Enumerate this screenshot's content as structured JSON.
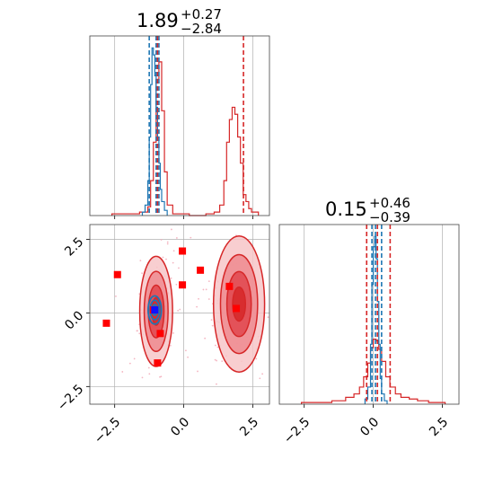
{
  "colors": {
    "red": "#d62728",
    "blue": "#1f77b4",
    "marker": "#ff0000",
    "grid": "#b0b0b0",
    "scatter": "#f4b6c2"
  },
  "chart_data": [
    {
      "type": "histogram",
      "panel": "top-left",
      "title": {
        "value": "1.89",
        "plus": "+0.27",
        "minus": "−2.84"
      },
      "xlim": [
        -3.4,
        3.1
      ],
      "grid": true,
      "series": [
        {
          "color": "#d62728",
          "bins": [
            -2.6,
            -2.0,
            -1.6,
            -1.4,
            -1.3,
            -1.2,
            -1.1,
            -1.0,
            -0.9,
            -0.8,
            -0.7,
            -0.6,
            -0.4,
            0.2,
            0.8,
            1.1,
            1.3,
            1.45,
            1.55,
            1.65,
            1.75,
            1.85,
            1.95,
            2.05,
            2.15,
            2.25,
            2.35,
            2.45,
            2.7
          ],
          "counts": [
            0.01,
            0.01,
            0.02,
            0.02,
            0.05,
            0.2,
            0.42,
            0.78,
            0.88,
            0.6,
            0.25,
            0.06,
            0.01,
            0.0,
            0.01,
            0.02,
            0.06,
            0.2,
            0.42,
            0.55,
            0.62,
            0.58,
            0.45,
            0.3,
            0.12,
            0.08,
            0.04,
            0.02,
            0.0
          ]
        },
        {
          "color": "#1f77b4",
          "bins": [
            -1.5,
            -1.4,
            -1.3,
            -1.25,
            -1.2,
            -1.15,
            -1.1,
            -1.05,
            -1.0,
            -0.95,
            -0.9,
            -0.85,
            -0.8,
            -0.7,
            -0.6
          ],
          "counts": [
            0.02,
            0.06,
            0.2,
            0.45,
            0.75,
            0.96,
            0.92,
            0.8,
            0.62,
            0.45,
            0.3,
            0.15,
            0.08,
            0.03,
            0.0
          ]
        }
      ],
      "quantiles": [
        {
          "color": "#1f77b4",
          "x": [
            -1.25,
            -1.0,
            -0.9
          ]
        },
        {
          "color": "#d62728",
          "x": [
            -0.95,
            2.16
          ]
        }
      ]
    },
    {
      "type": "histogram",
      "panel": "bottom-right",
      "title": {
        "value": "0.15",
        "plus": "+0.46",
        "minus": "−0.39"
      },
      "xlim": [
        -3.4,
        3.1
      ],
      "xticks": [
        "−2.5",
        "0.0",
        "2.5"
      ],
      "grid": true,
      "series": [
        {
          "color": "#d62728",
          "bins": [
            -2.6,
            -2.0,
            -1.5,
            -1.0,
            -0.7,
            -0.5,
            -0.35,
            -0.2,
            -0.1,
            0.0,
            0.1,
            0.2,
            0.3,
            0.45,
            0.6,
            0.8,
            1.0,
            1.3,
            1.6,
            2.0,
            2.6
          ],
          "counts": [
            0.01,
            0.01,
            0.02,
            0.04,
            0.06,
            0.1,
            0.16,
            0.24,
            0.33,
            0.38,
            0.37,
            0.32,
            0.25,
            0.16,
            0.1,
            0.06,
            0.04,
            0.03,
            0.02,
            0.01,
            0.0
          ]
        },
        {
          "color": "#1f77b4",
          "bins": [
            -0.3,
            -0.2,
            -0.1,
            -0.05,
            0.0,
            0.05,
            0.1,
            0.15,
            0.2,
            0.25,
            0.3,
            0.4,
            0.5
          ],
          "counts": [
            0.03,
            0.1,
            0.35,
            0.7,
            0.92,
            0.98,
            0.85,
            0.6,
            0.35,
            0.15,
            0.06,
            0.02,
            0.0
          ]
        }
      ],
      "quantiles": [
        {
          "color": "#d62728",
          "x": [
            -0.24,
            0.15,
            0.61
          ]
        },
        {
          "color": "#1f77b4",
          "x": [
            -0.05,
            0.08,
            0.3
          ]
        }
      ]
    },
    {
      "type": "contour",
      "panel": "bottom-left",
      "xlim": [
        -3.4,
        3.1
      ],
      "ylim": [
        -3.1,
        3.0
      ],
      "xticks": [
        "−2.5",
        "0.0",
        "2.5"
      ],
      "yticks": [
        "−2.5",
        "0.0",
        "2.5"
      ],
      "grid": true,
      "modes": [
        {
          "cx": -1.0,
          "cy": 0.05,
          "sx": 0.27,
          "sy": 0.85,
          "color": "#d62728"
        },
        {
          "cx": 2.0,
          "cy": 0.3,
          "sx": 0.42,
          "sy": 1.05,
          "color": "#d62728"
        },
        {
          "cx": -1.05,
          "cy": 0.1,
          "sx": 0.15,
          "sy": 0.3,
          "color": "#1f77b4"
        }
      ],
      "markers": [
        {
          "x": -2.4,
          "y": 1.3,
          "color": "#ff0000"
        },
        {
          "x": -2.8,
          "y": -0.35,
          "color": "#ff0000"
        },
        {
          "x": -0.05,
          "y": 2.1,
          "color": "#ff0000"
        },
        {
          "x": -0.05,
          "y": 0.95,
          "color": "#ff0000"
        },
        {
          "x": 0.6,
          "y": 1.45,
          "color": "#ff0000"
        },
        {
          "x": -0.85,
          "y": -0.7,
          "color": "#ff0000"
        },
        {
          "x": -0.95,
          "y": -1.7,
          "color": "#ff0000"
        },
        {
          "x": -1.1,
          "y": 0.1,
          "color": "#ff0000"
        },
        {
          "x": 1.65,
          "y": 0.9,
          "color": "#ff0000"
        },
        {
          "x": 1.9,
          "y": 0.15,
          "color": "#ff0000"
        },
        {
          "x": -1.05,
          "y": 0.1,
          "color": "#1010ff"
        }
      ]
    }
  ]
}
